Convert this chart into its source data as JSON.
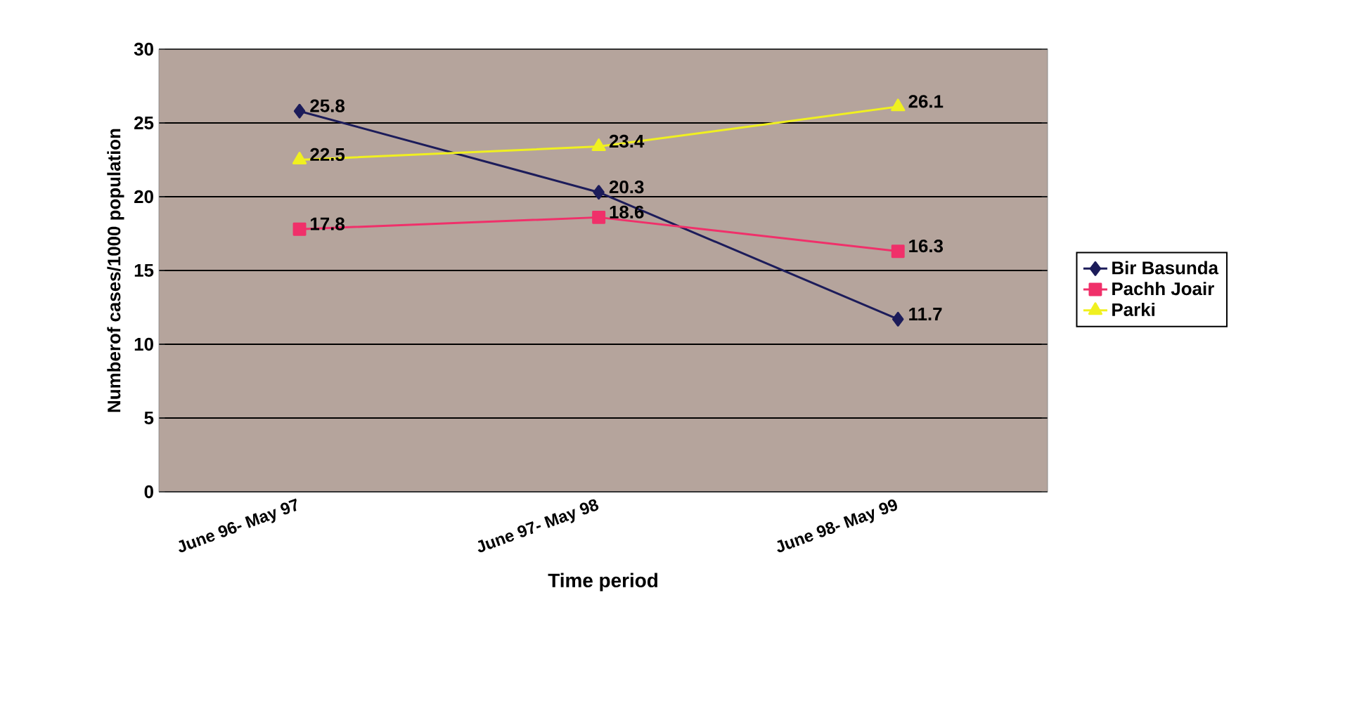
{
  "chart_data": {
    "type": "line",
    "xlabel": "Time period",
    "ylabel": "Numberof cases/1000 population",
    "categories": [
      "June 96- May 97",
      "June 97- May 98",
      "June 98- May 99"
    ],
    "series": [
      {
        "name": "Bir Basunda",
        "color": "#1c1c5a",
        "marker": "diamond",
        "values": [
          25.8,
          20.3,
          11.7
        ]
      },
      {
        "name": "Pachh Joair",
        "color": "#f0306a",
        "marker": "square",
        "values": [
          17.8,
          18.6,
          16.3
        ]
      },
      {
        "name": "Parki",
        "color": "#f0f020",
        "marker": "triangle",
        "values": [
          22.5,
          23.4,
          26.1
        ]
      }
    ],
    "ylim": [
      0,
      30
    ],
    "yticks": [
      0,
      5,
      10,
      15,
      20,
      25,
      30
    ],
    "grid": "y",
    "legend": "right",
    "data_labels": true
  }
}
